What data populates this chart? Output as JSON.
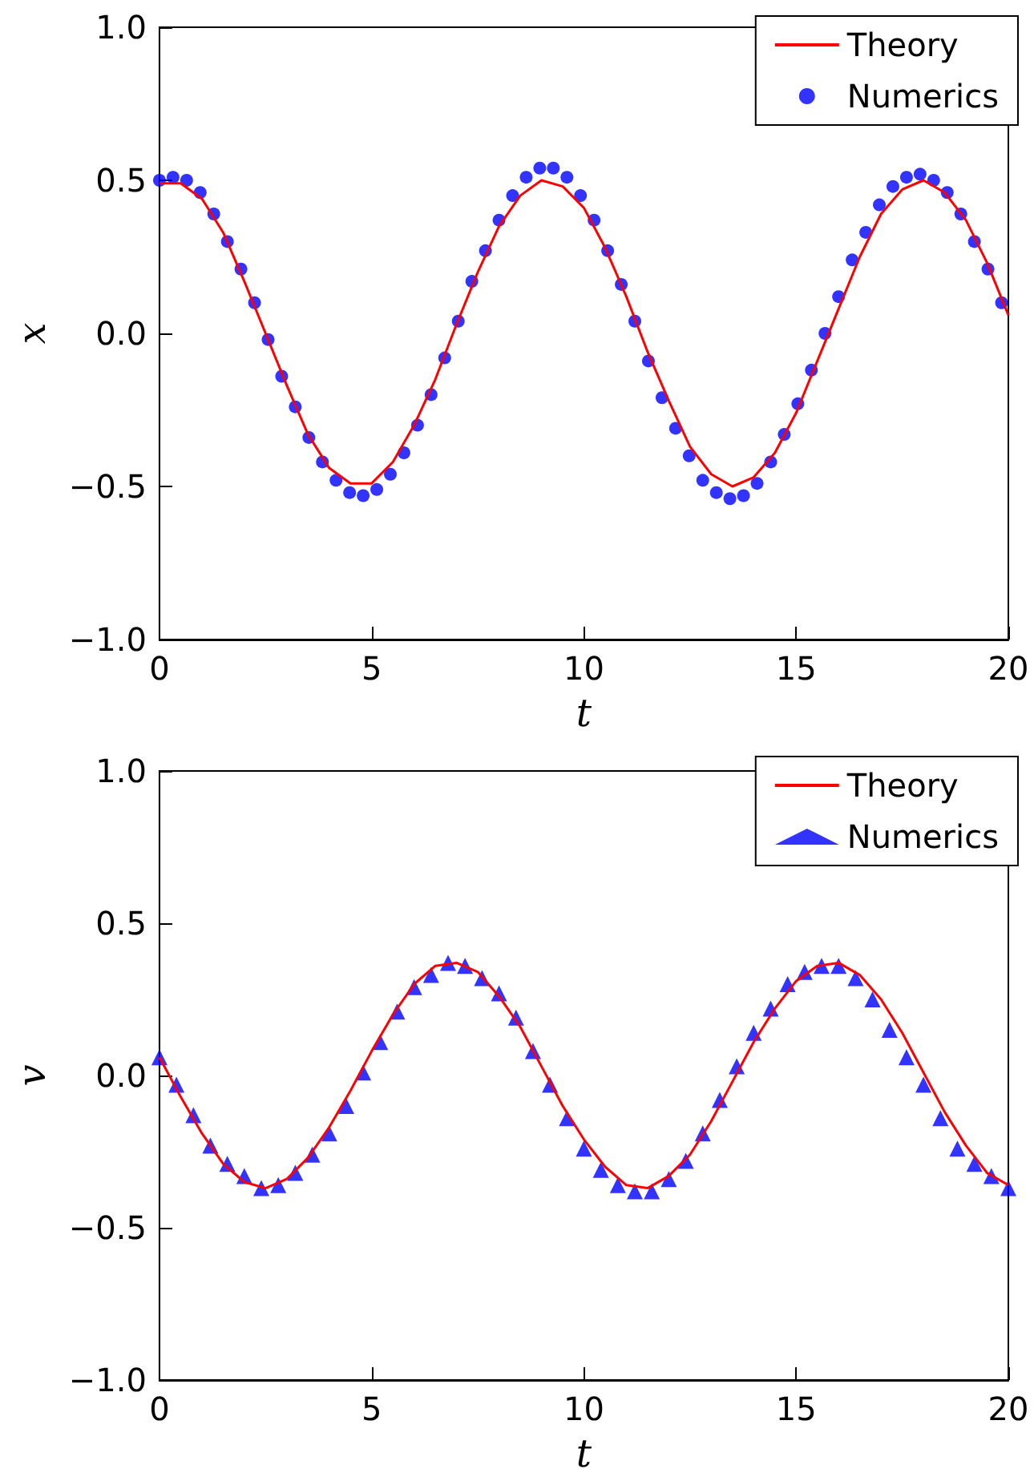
{
  "chart_data": [
    {
      "type": "line",
      "xlabel": "t",
      "ylabel": "x",
      "xlim": [
        0,
        20
      ],
      "ylim": [
        -1,
        1
      ],
      "xticks": [
        0,
        5,
        10,
        15,
        20
      ],
      "yticks": [
        {
          "value": -1,
          "label": "−1.0"
        },
        {
          "value": -0.5,
          "label": "−0.5"
        },
        {
          "value": 0,
          "label": "0.0"
        },
        {
          "value": 0.5,
          "label": "0.5"
        },
        {
          "value": 1,
          "label": "1.0"
        }
      ],
      "legend": "top right",
      "series": [
        {
          "name": "Theory",
          "color": "#ff0000",
          "marker": "none",
          "x": [
            0,
            0.5,
            1,
            1.5,
            2,
            2.5,
            3,
            3.5,
            4,
            4.5,
            5,
            5.5,
            6,
            6.5,
            7,
            7.5,
            8,
            8.5,
            9,
            9.5,
            10,
            10.5,
            11,
            11.5,
            12,
            12.5,
            13,
            13.5,
            14,
            14.5,
            15,
            15.5,
            16,
            16.5,
            17,
            17.5,
            18,
            18.5,
            19,
            19.5,
            20
          ],
          "values": [
            0.49,
            0.49,
            0.44,
            0.33,
            0.17,
            0.0,
            -0.17,
            -0.33,
            -0.44,
            -0.49,
            -0.49,
            -0.42,
            -0.3,
            -0.15,
            0.03,
            0.2,
            0.35,
            0.45,
            0.5,
            0.48,
            0.41,
            0.28,
            0.12,
            -0.06,
            -0.22,
            -0.37,
            -0.46,
            -0.5,
            -0.47,
            -0.39,
            -0.26,
            -0.09,
            0.08,
            0.25,
            0.39,
            0.47,
            0.5,
            0.46,
            0.37,
            0.23,
            0.06
          ]
        },
        {
          "name": "Numerics",
          "type": "scatter",
          "color": "#0000ff",
          "marker": "circle",
          "x": [
            0,
            0.32,
            0.64,
            0.96,
            1.28,
            1.6,
            1.92,
            2.24,
            2.56,
            2.88,
            3.2,
            3.52,
            3.84,
            4.16,
            4.48,
            4.8,
            5.12,
            5.44,
            5.76,
            6.08,
            6.4,
            6.72,
            7.04,
            7.36,
            7.68,
            8,
            8.32,
            8.64,
            8.96,
            9.28,
            9.6,
            9.92,
            10.24,
            10.56,
            10.88,
            11.2,
            11.52,
            11.84,
            12.16,
            12.48,
            12.8,
            13.12,
            13.44,
            13.76,
            14.08,
            14.4,
            14.72,
            15.04,
            15.36,
            15.68,
            16,
            16.32,
            16.64,
            16.96,
            17.28,
            17.6,
            17.92,
            18.24,
            18.56,
            18.88,
            19.2,
            19.52,
            19.84
          ],
          "values": [
            0.5,
            0.51,
            0.5,
            0.46,
            0.39,
            0.3,
            0.21,
            0.1,
            -0.02,
            -0.14,
            -0.24,
            -0.34,
            -0.42,
            -0.48,
            -0.52,
            -0.53,
            -0.51,
            -0.46,
            -0.39,
            -0.3,
            -0.2,
            -0.08,
            0.04,
            0.17,
            0.27,
            0.37,
            0.45,
            0.51,
            0.54,
            0.54,
            0.51,
            0.45,
            0.37,
            0.27,
            0.16,
            0.04,
            -0.09,
            -0.21,
            -0.31,
            -0.4,
            -0.48,
            -0.52,
            -0.54,
            -0.53,
            -0.49,
            -0.42,
            -0.33,
            -0.23,
            -0.12,
            0.0,
            0.12,
            0.24,
            0.33,
            0.42,
            0.48,
            0.51,
            0.52,
            0.5,
            0.46,
            0.39,
            0.3,
            0.21,
            0.1
          ]
        }
      ]
    },
    {
      "type": "line",
      "xlabel": "t",
      "ylabel": "v",
      "xlim": [
        0,
        20
      ],
      "ylim": [
        -1,
        1
      ],
      "xticks": [
        0,
        5,
        10,
        15,
        20
      ],
      "yticks": [
        {
          "value": -1,
          "label": "−1.0"
        },
        {
          "value": -0.5,
          "label": "−0.5"
        },
        {
          "value": 0,
          "label": "0.0"
        },
        {
          "value": 0.5,
          "label": "0.5"
        },
        {
          "value": 1,
          "label": "1.0"
        }
      ],
      "legend": "top right",
      "series": [
        {
          "name": "Theory",
          "color": "#ff0000",
          "marker": "none",
          "x": [
            0,
            0.5,
            1,
            1.5,
            2,
            2.5,
            3,
            3.5,
            4,
            4.5,
            5,
            5.5,
            6,
            6.5,
            7,
            7.5,
            8,
            8.5,
            9,
            9.5,
            10,
            10.5,
            11,
            11.5,
            12,
            12.5,
            13,
            13.5,
            14,
            14.5,
            15,
            15.5,
            16,
            16.5,
            17,
            17.5,
            18,
            18.5,
            19,
            19.5,
            20
          ],
          "values": [
            0.06,
            -0.07,
            -0.19,
            -0.29,
            -0.35,
            -0.37,
            -0.34,
            -0.27,
            -0.17,
            -0.05,
            0.08,
            0.2,
            0.3,
            0.36,
            0.37,
            0.34,
            0.26,
            0.16,
            0.03,
            -0.1,
            -0.21,
            -0.3,
            -0.36,
            -0.37,
            -0.33,
            -0.26,
            -0.15,
            -0.02,
            0.11,
            0.22,
            0.31,
            0.36,
            0.37,
            0.33,
            0.25,
            0.14,
            0.01,
            -0.12,
            -0.23,
            -0.32,
            -0.36
          ]
        },
        {
          "name": "Numerics",
          "type": "scatter",
          "color": "#0000ff",
          "marker": "triangle",
          "x": [
            0,
            0.4,
            0.8,
            1.2,
            1.6,
            2,
            2.4,
            2.8,
            3.2,
            3.6,
            4,
            4.4,
            4.8,
            5.2,
            5.6,
            6,
            6.4,
            6.8,
            7.2,
            7.6,
            8,
            8.4,
            8.8,
            9.2,
            9.6,
            10,
            10.4,
            10.8,
            11.2,
            11.6,
            12,
            12.4,
            12.8,
            13.2,
            13.6,
            14,
            14.4,
            14.8,
            15.2,
            15.6,
            16,
            16.4,
            16.8,
            17.2,
            17.6,
            18,
            18.4,
            18.8,
            19.2,
            19.6,
            20
          ],
          "values": [
            0.06,
            -0.03,
            -0.13,
            -0.23,
            -0.29,
            -0.33,
            -0.37,
            -0.36,
            -0.32,
            -0.26,
            -0.19,
            -0.1,
            0.01,
            0.11,
            0.21,
            0.29,
            0.33,
            0.37,
            0.36,
            0.32,
            0.27,
            0.19,
            0.08,
            -0.03,
            -0.14,
            -0.24,
            -0.31,
            -0.36,
            -0.38,
            -0.38,
            -0.34,
            -0.28,
            -0.19,
            -0.08,
            0.03,
            0.14,
            0.22,
            0.3,
            0.34,
            0.36,
            0.36,
            0.32,
            0.25,
            0.15,
            0.06,
            -0.03,
            -0.14,
            -0.24,
            -0.29,
            -0.33,
            -0.37
          ]
        }
      ]
    }
  ]
}
